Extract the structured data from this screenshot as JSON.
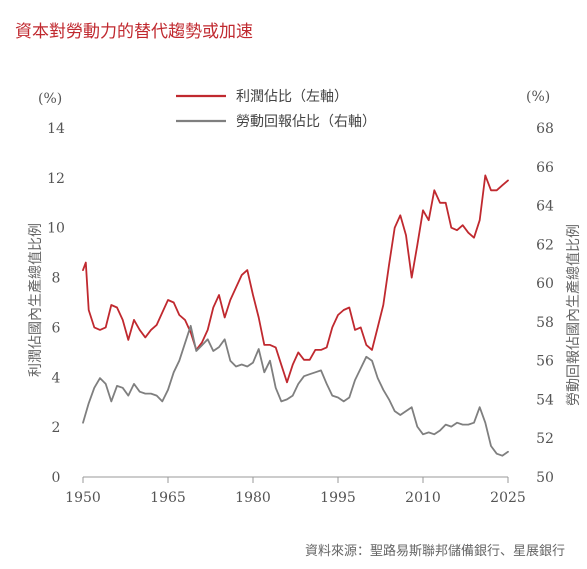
{
  "title": "資本對勞動力的替代趨勢或加速",
  "source": "資料來源：聖路易斯聯邦儲備銀行、星展銀行",
  "colors": {
    "profit": "#c0292f",
    "labor": "#7f7f7f",
    "title": "#c0292f",
    "axis": "#999999"
  },
  "chart_data": {
    "type": "line",
    "x_ticks": [
      1950,
      1965,
      1980,
      1995,
      2010,
      2025
    ],
    "xlim": [
      1950,
      2025
    ],
    "left_axis": {
      "unit": "(%)",
      "label": "利潤佔國內生產總值比例",
      "ylim": [
        0,
        14
      ],
      "ticks": [
        0,
        2,
        4,
        6,
        8,
        10,
        12,
        14
      ]
    },
    "right_axis": {
      "unit": "(%)",
      "label": "勞動回報佔國內生產總值比例",
      "ylim": [
        50,
        68
      ],
      "ticks": [
        50,
        52,
        54,
        56,
        58,
        60,
        62,
        64,
        66,
        68
      ]
    },
    "series": [
      {
        "name": "利潤佔比（左軸）",
        "axis": "left",
        "color": "#c0292f",
        "x": [
          1950,
          1950.5,
          1951,
          1952,
          1953,
          1954,
          1955,
          1956,
          1957,
          1958,
          1959,
          1960,
          1961,
          1962,
          1963,
          1964,
          1965,
          1966,
          1967,
          1968,
          1969,
          1970,
          1971,
          1972,
          1973,
          1974,
          1975,
          1976,
          1977,
          1978,
          1979,
          1980,
          1981,
          1982,
          1983,
          1984,
          1985,
          1986,
          1987,
          1988,
          1989,
          1990,
          1991,
          1992,
          1993,
          1994,
          1995,
          1996,
          1997,
          1998,
          1999,
          2000,
          2001,
          2002,
          2003,
          2004,
          2005,
          2006,
          2007,
          2008,
          2009,
          2010,
          2011,
          2012,
          2013,
          2014,
          2015,
          2016,
          2017,
          2018,
          2019,
          2020,
          2021,
          2022,
          2023,
          2024,
          2025
        ],
        "values": [
          8.3,
          8.6,
          6.7,
          6.0,
          5.9,
          6.0,
          6.9,
          6.8,
          6.3,
          5.5,
          6.3,
          5.9,
          5.6,
          5.9,
          6.1,
          6.6,
          7.1,
          7.0,
          6.5,
          6.3,
          5.8,
          5.1,
          5.4,
          5.9,
          6.8,
          7.3,
          6.4,
          7.1,
          7.6,
          8.1,
          8.3,
          7.3,
          6.4,
          5.3,
          5.3,
          5.2,
          4.5,
          3.8,
          4.5,
          5.0,
          4.7,
          4.7,
          5.1,
          5.1,
          5.2,
          6.0,
          6.5,
          6.7,
          6.8,
          5.9,
          6.0,
          5.3,
          5.1,
          6.0,
          6.9,
          8.5,
          10.0,
          10.5,
          9.7,
          8.0,
          9.3,
          10.7,
          10.3,
          11.5,
          11.0,
          11.0,
          10.0,
          9.9,
          10.1,
          9.8,
          9.6,
          10.3,
          12.1,
          11.5,
          11.5,
          11.7,
          11.9
        ]
      },
      {
        "name": "勞動回報佔比（右軸）",
        "axis": "right",
        "color": "#7f7f7f",
        "x": [
          1950,
          1951,
          1952,
          1953,
          1954,
          1955,
          1956,
          1957,
          1958,
          1959,
          1960,
          1961,
          1962,
          1963,
          1964,
          1965,
          1966,
          1967,
          1968,
          1969,
          1970,
          1971,
          1972,
          1973,
          1974,
          1975,
          1976,
          1977,
          1978,
          1979,
          1980,
          1981,
          1982,
          1983,
          1984,
          1985,
          1986,
          1987,
          1988,
          1989,
          1990,
          1991,
          1992,
          1993,
          1994,
          1995,
          1996,
          1997,
          1998,
          1999,
          2000,
          2001,
          2002,
          2003,
          2004,
          2005,
          2006,
          2007,
          2008,
          2009,
          2010,
          2011,
          2012,
          2013,
          2014,
          2015,
          2016,
          2017,
          2018,
          2019,
          2020,
          2021,
          2022,
          2023,
          2024,
          2025
        ],
        "values": [
          52.8,
          53.8,
          54.6,
          55.1,
          54.8,
          53.9,
          54.7,
          54.6,
          54.2,
          54.8,
          54.4,
          54.3,
          54.3,
          54.2,
          53.9,
          54.5,
          55.4,
          56.0,
          56.9,
          57.8,
          56.5,
          56.8,
          57.1,
          56.5,
          56.7,
          57.1,
          56.0,
          55.7,
          55.8,
          55.7,
          55.9,
          56.6,
          55.4,
          56.0,
          54.6,
          53.9,
          54.0,
          54.2,
          54.8,
          55.2,
          55.3,
          55.4,
          55.5,
          54.8,
          54.2,
          54.1,
          53.9,
          54.1,
          55.0,
          55.6,
          56.2,
          56.0,
          55.1,
          54.5,
          54.0,
          53.4,
          53.2,
          53.4,
          53.6,
          52.6,
          52.2,
          52.3,
          52.2,
          52.4,
          52.7,
          52.6,
          52.8,
          52.7,
          52.7,
          52.8,
          53.6,
          52.8,
          51.6,
          51.2,
          51.1,
          51.3
        ]
      }
    ]
  }
}
